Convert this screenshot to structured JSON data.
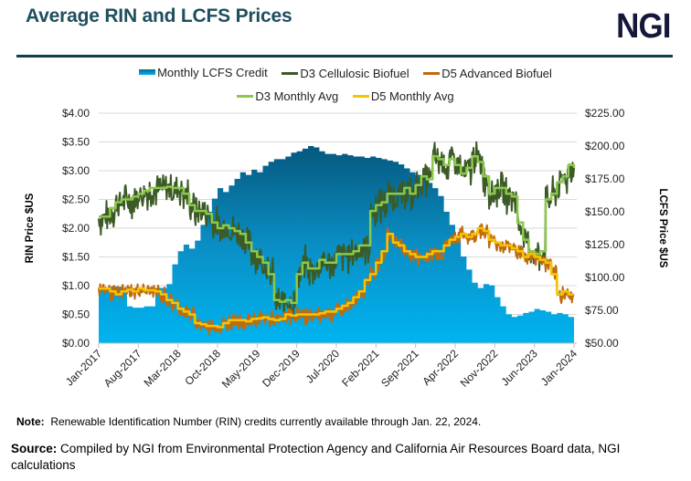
{
  "header": {
    "title": "Average RIN and LCFS Prices",
    "logo": "NGI"
  },
  "legend": [
    {
      "label": "Monthly LCFS Credit",
      "color": "#0a9fd8"
    },
    {
      "label": "D3 Cellulosic Biofuel",
      "color": "#3b5a25"
    },
    {
      "label": "D5 Advanced Biofuel",
      "color": "#c06a0e"
    },
    {
      "label": "D3 Monthly Avg",
      "color": "#8cc84b"
    },
    {
      "label": "D5 Monthly Avg",
      "color": "#f5c400"
    }
  ],
  "chart_data": {
    "type": "line",
    "title": "Average RIN and LCFS Prices",
    "ylabel": "RIN Price $US",
    "y2label": "LCFS Price $US",
    "ylim": [
      0,
      4
    ],
    "y2lim": [
      50,
      225
    ],
    "yticks": [
      "$0.00",
      "$0.50",
      "$1.00",
      "$1.50",
      "$2.00",
      "$2.50",
      "$3.00",
      "$3.50",
      "$4.00"
    ],
    "y2ticks": [
      "$50.00",
      "$75.00",
      "$100.00",
      "$125.00",
      "$150.00",
      "$175.00",
      "$200.00",
      "$225.00"
    ],
    "xticks": [
      "Jan-2017",
      "Aug-2017",
      "Mar-2018",
      "Oct-2018",
      "May-2019",
      "Dec-2019",
      "Jul-2020",
      "Feb-2021",
      "Sep-2021",
      "Apr-2022",
      "Nov-2022",
      "Jun-2023",
      "Jan-2024"
    ],
    "x_start": "Jan-2017",
    "x_interval": "monthly",
    "grid": true,
    "legend_position": "top",
    "series": [
      {
        "name": "Monthly LCFS Credit",
        "axis": "right",
        "type": "area",
        "values": [
          92,
          92,
          93,
          93,
          90,
          78,
          77,
          77,
          78,
          78,
          92,
          92,
          95,
          110,
          120,
          125,
          122,
          128,
          140,
          150,
          160,
          168,
          165,
          170,
          175,
          180,
          178,
          182,
          180,
          185,
          188,
          190,
          190,
          192,
          195,
          196,
          198,
          200,
          199,
          196,
          194,
          194,
          193,
          194,
          193,
          192,
          192,
          191,
          192,
          191,
          190,
          189,
          188,
          186,
          183,
          180,
          178,
          176,
          172,
          168,
          162,
          150,
          140,
          128,
          116,
          106,
          96,
          92,
          95,
          94,
          85,
          78,
          72,
          70,
          71,
          73,
          74,
          76,
          75,
          74,
          72,
          73,
          72,
          70,
          68
        ]
      },
      {
        "name": "D3 Monthly Avg",
        "axis": "left",
        "values": [
          2.2,
          2.2,
          2.35,
          2.45,
          2.5,
          2.5,
          2.55,
          2.6,
          2.65,
          2.7,
          2.7,
          2.7,
          2.72,
          2.7,
          2.7,
          2.6,
          2.4,
          2.3,
          2.3,
          2.25,
          2.1,
          2.0,
          2.05,
          2.0,
          1.95,
          1.9,
          1.75,
          1.6,
          1.5,
          1.4,
          1.2,
          0.75,
          0.72,
          0.75,
          0.7,
          1.2,
          1.4,
          1.3,
          1.3,
          1.45,
          1.4,
          1.4,
          1.55,
          1.55,
          1.55,
          1.6,
          1.7,
          1.7,
          2.3,
          2.4,
          2.45,
          2.6,
          2.6,
          2.6,
          2.7,
          2.6,
          2.75,
          2.9,
          2.85,
          3.25,
          3.2,
          3.1,
          3.2,
          3.1,
          2.95,
          3.05,
          3.25,
          3.15,
          2.9,
          2.6,
          2.7,
          2.7,
          2.6,
          2.55,
          2.1,
          1.8,
          1.6,
          1.55,
          1.6,
          2.5,
          2.6,
          2.8,
          2.9,
          3.1,
          3.05
        ]
      },
      {
        "name": "D5 Monthly Avg",
        "axis": "left",
        "values": [
          0.95,
          0.95,
          0.9,
          0.85,
          0.9,
          0.93,
          0.9,
          0.95,
          0.92,
          0.92,
          0.9,
          0.85,
          0.75,
          0.7,
          0.6,
          0.55,
          0.5,
          0.35,
          0.33,
          0.3,
          0.3,
          0.28,
          0.35,
          0.4,
          0.4,
          0.4,
          0.38,
          0.42,
          0.43,
          0.45,
          0.42,
          0.4,
          0.42,
          0.5,
          0.48,
          0.5,
          0.5,
          0.5,
          0.5,
          0.52,
          0.55,
          0.55,
          0.6,
          0.65,
          0.7,
          0.8,
          0.9,
          1.1,
          1.2,
          1.4,
          1.6,
          1.9,
          1.75,
          1.7,
          1.6,
          1.55,
          1.5,
          1.5,
          1.55,
          1.6,
          1.6,
          1.7,
          1.8,
          1.85,
          1.9,
          1.85,
          1.9,
          2.0,
          1.95,
          1.8,
          1.75,
          1.7,
          1.7,
          1.65,
          1.6,
          1.5,
          1.55,
          1.5,
          1.45,
          1.4,
          1.2,
          0.85,
          0.9,
          0.85,
          0.85
        ]
      },
      {
        "name": "D3 Cellulosic Biofuel",
        "axis": "left",
        "derived_from": "D3 Monthly Avg",
        "note": "daily series shown as noisy line around monthly average"
      },
      {
        "name": "D5 Advanced Biofuel",
        "axis": "left",
        "derived_from": "D5 Monthly Avg",
        "note": "daily series shown as noisy line around monthly average"
      }
    ]
  },
  "footer": {
    "note_label": "Note:",
    "note_text": "Renewable Identification Number (RIN) credits currently available through Jan. 22, 2024.",
    "source_label": "Source:",
    "source_text": "Compiled by NGI from Environmental Protection Agency and California Air Resources Board data, NGI calculations"
  }
}
